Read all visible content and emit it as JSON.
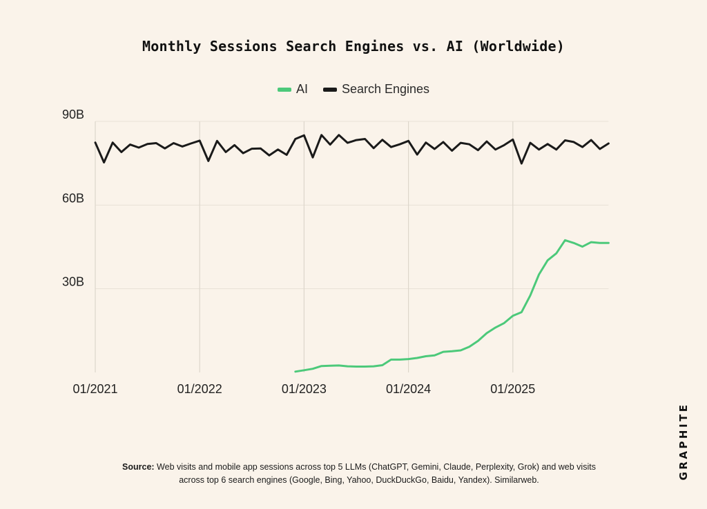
{
  "chart_data": {
    "type": "line",
    "title": "Monthly Sessions Search Engines vs. AI (Worldwide)",
    "legend_position": "top-center",
    "grid": "vertical lines at years, horizontal lines at y ticks",
    "x_ticks": [
      "01/2021",
      "01/2022",
      "01/2023",
      "01/2024",
      "01/2025"
    ],
    "y_ticks": [
      {
        "value": 30,
        "label": "30B"
      },
      {
        "value": 60,
        "label": "60B"
      },
      {
        "value": 90,
        "label": "90B"
      }
    ],
    "ylim": [
      0,
      90
    ],
    "x_range": [
      "2021-01",
      "2025-12"
    ],
    "series": [
      {
        "name": "AI",
        "color": "#4CC97A",
        "start": "2022-12",
        "values": [
          0.3,
          0.8,
          1.3,
          2.3,
          2.4,
          2.5,
          2.2,
          2.1,
          2.1,
          2.2,
          2.6,
          4.6,
          4.6,
          4.8,
          5.2,
          5.8,
          6.1,
          7.4,
          7.6,
          7.9,
          9.2,
          11.3,
          14.1,
          16.1,
          17.7,
          20.3,
          21.6,
          27.6,
          35.1,
          40.2,
          42.7,
          47.4,
          46.4,
          45.1,
          46.7,
          46.4,
          46.4
        ]
      },
      {
        "name": "Search Engines",
        "color": "#1A1A1A",
        "start": "2021-01",
        "values": [
          82.4,
          75.3,
          82.4,
          79.0,
          81.7,
          80.6,
          81.9,
          82.2,
          80.3,
          82.2,
          81.0,
          82.1,
          83.1,
          75.8,
          83.0,
          79.0,
          81.5,
          78.6,
          80.2,
          80.3,
          77.8,
          79.9,
          78.0,
          83.7,
          85.0,
          77.1,
          85.1,
          81.7,
          85.1,
          82.3,
          83.3,
          83.7,
          80.4,
          83.4,
          80.8,
          81.8,
          83.0,
          78.1,
          82.4,
          80.1,
          82.6,
          79.5,
          82.3,
          81.8,
          79.7,
          82.8,
          79.9,
          81.5,
          83.5,
          74.9,
          82.3,
          79.9,
          81.9,
          79.9,
          83.2,
          82.6,
          80.8,
          83.3,
          80.1,
          82.1
        ]
      }
    ]
  },
  "legend": {
    "ai_label": "AI",
    "search_label": "Search Engines"
  },
  "source": {
    "label": "Source:",
    "text": " Web visits and mobile app sessions across top 5 LLMs (ChatGPT, Gemini, Claude, Perplexity, Grok) and web visits across top 6 search engines (Google, Bing, Yahoo, DuckDuckGo, Baidu, Yandex). Similarweb."
  },
  "brand": "GRAPHITE"
}
